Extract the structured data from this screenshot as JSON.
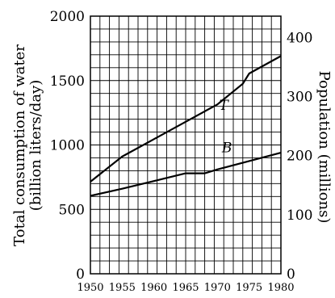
{
  "chart_data": {
    "type": "line",
    "title": "",
    "xlabel": "",
    "ylabel_left": "Total consumption of water (billion liters/day)",
    "ylabel_right": "Population (millions)",
    "ylabel_left_line1": "Total consumption of water",
    "ylabel_left_line2": "(billion liters/day)",
    "xlim": [
      1950,
      1980
    ],
    "ylim_left": [
      0,
      2000
    ],
    "ylim_right": [
      0,
      436
    ],
    "x_ticks": [
      "1950",
      "1955",
      "1960",
      "1965",
      "1970",
      "1975",
      "1980"
    ],
    "x_tick_values": [
      1950,
      1955,
      1960,
      1965,
      1970,
      1975,
      1980
    ],
    "y_ticks_left": [
      "0",
      "500",
      "1000",
      "1500",
      "2000"
    ],
    "y_tick_values_left": [
      0,
      500,
      1000,
      1500,
      2000
    ],
    "y_ticks_right": [
      "0",
      "100",
      "200",
      "300",
      "400"
    ],
    "y_tick_values_right": [
      0,
      100,
      200,
      300,
      400
    ],
    "grid": true,
    "series": [
      {
        "name": "T",
        "axis": "left",
        "x": [
          1950,
          1955,
          1960,
          1965,
          1970,
          1974,
          1975,
          1980
        ],
        "y": [
          715,
          910,
          1045,
          1180,
          1315,
          1475,
          1555,
          1690
        ]
      },
      {
        "name": "B",
        "axis": "left",
        "x": [
          1950,
          1955,
          1960,
          1965,
          1968,
          1970,
          1975,
          1980
        ],
        "y": [
          605,
          660,
          720,
          780,
          780,
          810,
          875,
          940
        ]
      }
    ]
  }
}
